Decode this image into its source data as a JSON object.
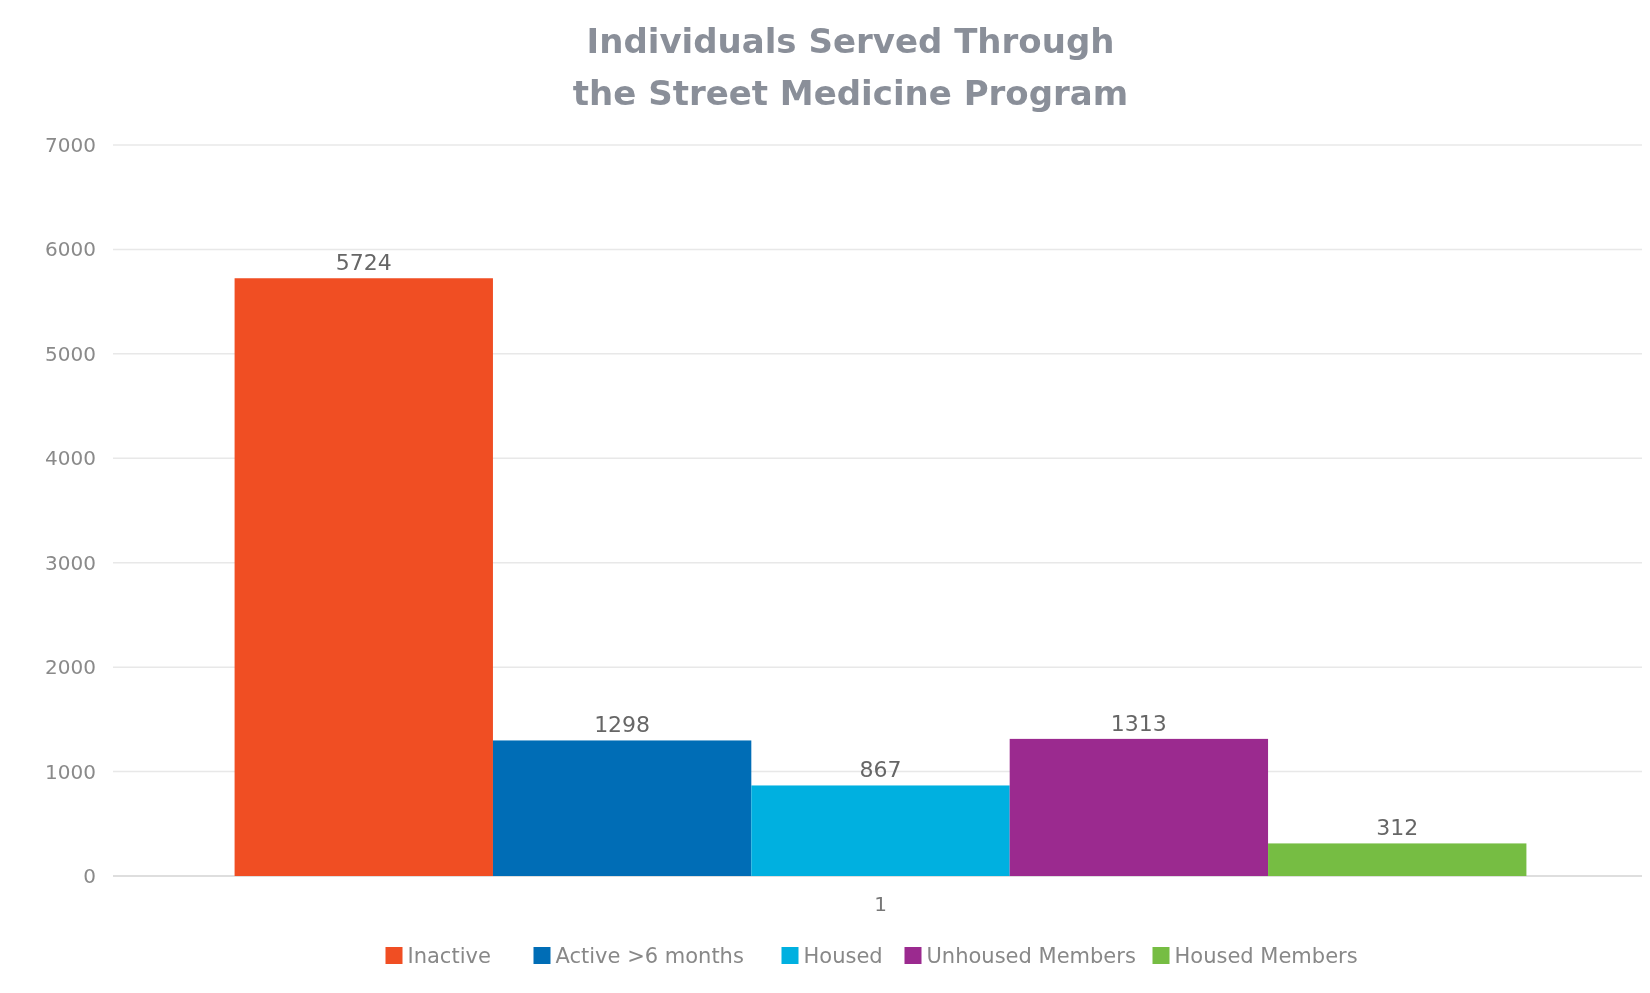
{
  "chart_data": {
    "type": "bar",
    "title": "Individuals Served Through\nthe Street Medicine Program",
    "categories": [
      "1"
    ],
    "series": [
      {
        "name": "Inactive",
        "color": "#f04e23",
        "values": [
          5724
        ]
      },
      {
        "name": "Active >6 months",
        "color": "#006db6",
        "values": [
          1298
        ]
      },
      {
        "name": "Housed",
        "color": "#00b0e0",
        "values": [
          867
        ]
      },
      {
        "name": "Unhoused Members",
        "color": "#9b2a8f",
        "values": [
          1313
        ]
      },
      {
        "name": "Housed Members",
        "color": "#76bd43",
        "values": [
          312
        ]
      }
    ],
    "ylim": [
      0,
      7000
    ],
    "yticks": [
      0,
      1000,
      2000,
      3000,
      4000,
      5000,
      6000,
      7000
    ],
    "grid": "y",
    "legend": "bottom",
    "data_labels": true
  }
}
